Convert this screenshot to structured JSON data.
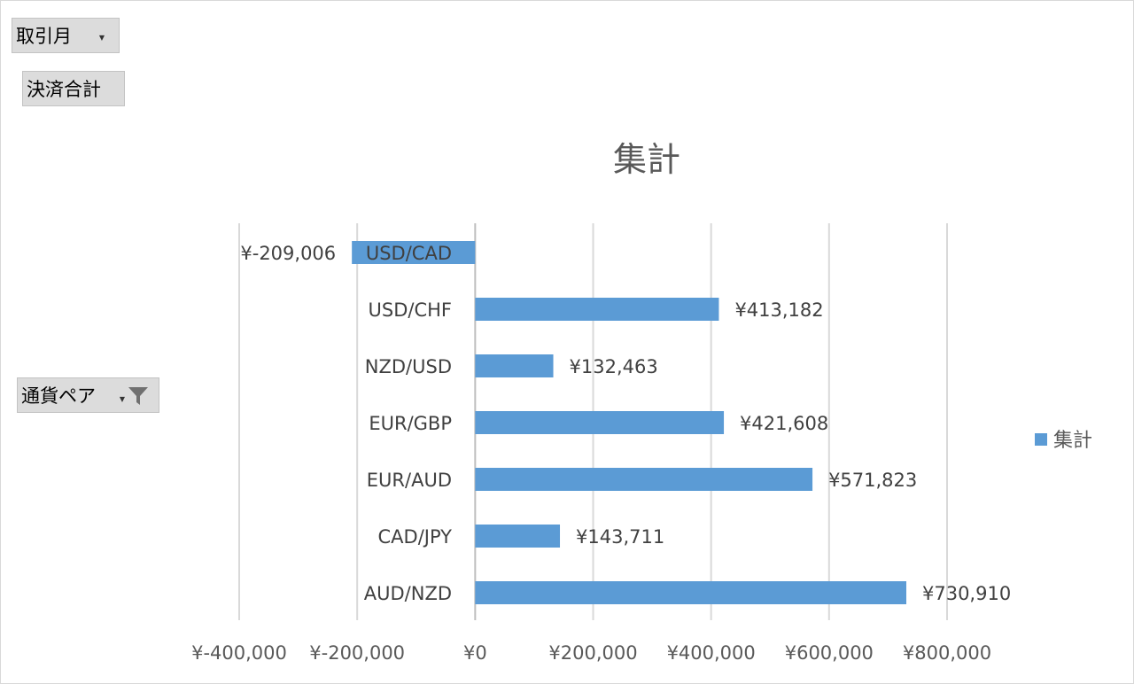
{
  "field_buttons": {
    "month": {
      "label": "取引月",
      "icon": "dropdown-caret-icon"
    },
    "sum": {
      "label": "決済合計"
    },
    "pair": {
      "label": "通貨ペア",
      "icon": "filter-icon"
    }
  },
  "colors": {
    "bar": "#5b9bd5",
    "grid": "#d9d9d9",
    "axis": "#bfbfbf"
  },
  "chart_data": {
    "type": "bar",
    "orientation": "horizontal",
    "title": "集計",
    "categories": [
      "USD/CAD",
      "USD/CHF",
      "NZD/USD",
      "EUR/GBP",
      "EUR/AUD",
      "CAD/JPY",
      "AUD/NZD"
    ],
    "series": [
      {
        "name": "集計",
        "values": [
          -209006,
          413182,
          132463,
          421608,
          571823,
          143711,
          730910
        ],
        "value_labels": [
          "¥-209,006",
          "¥413,182",
          "¥132,463",
          "¥421,608",
          "¥571,823",
          "¥143,711",
          "¥730,910"
        ]
      }
    ],
    "xlim": [
      -400000,
      800000
    ],
    "x_ticks": [
      -400000,
      -200000,
      0,
      200000,
      400000,
      600000,
      800000
    ],
    "x_tick_labels": [
      "¥-400,000",
      "¥-200,000",
      "¥0",
      "¥200,000",
      "¥400,000",
      "¥600,000",
      "¥800,000"
    ],
    "grid": true,
    "legend_position": "right"
  }
}
